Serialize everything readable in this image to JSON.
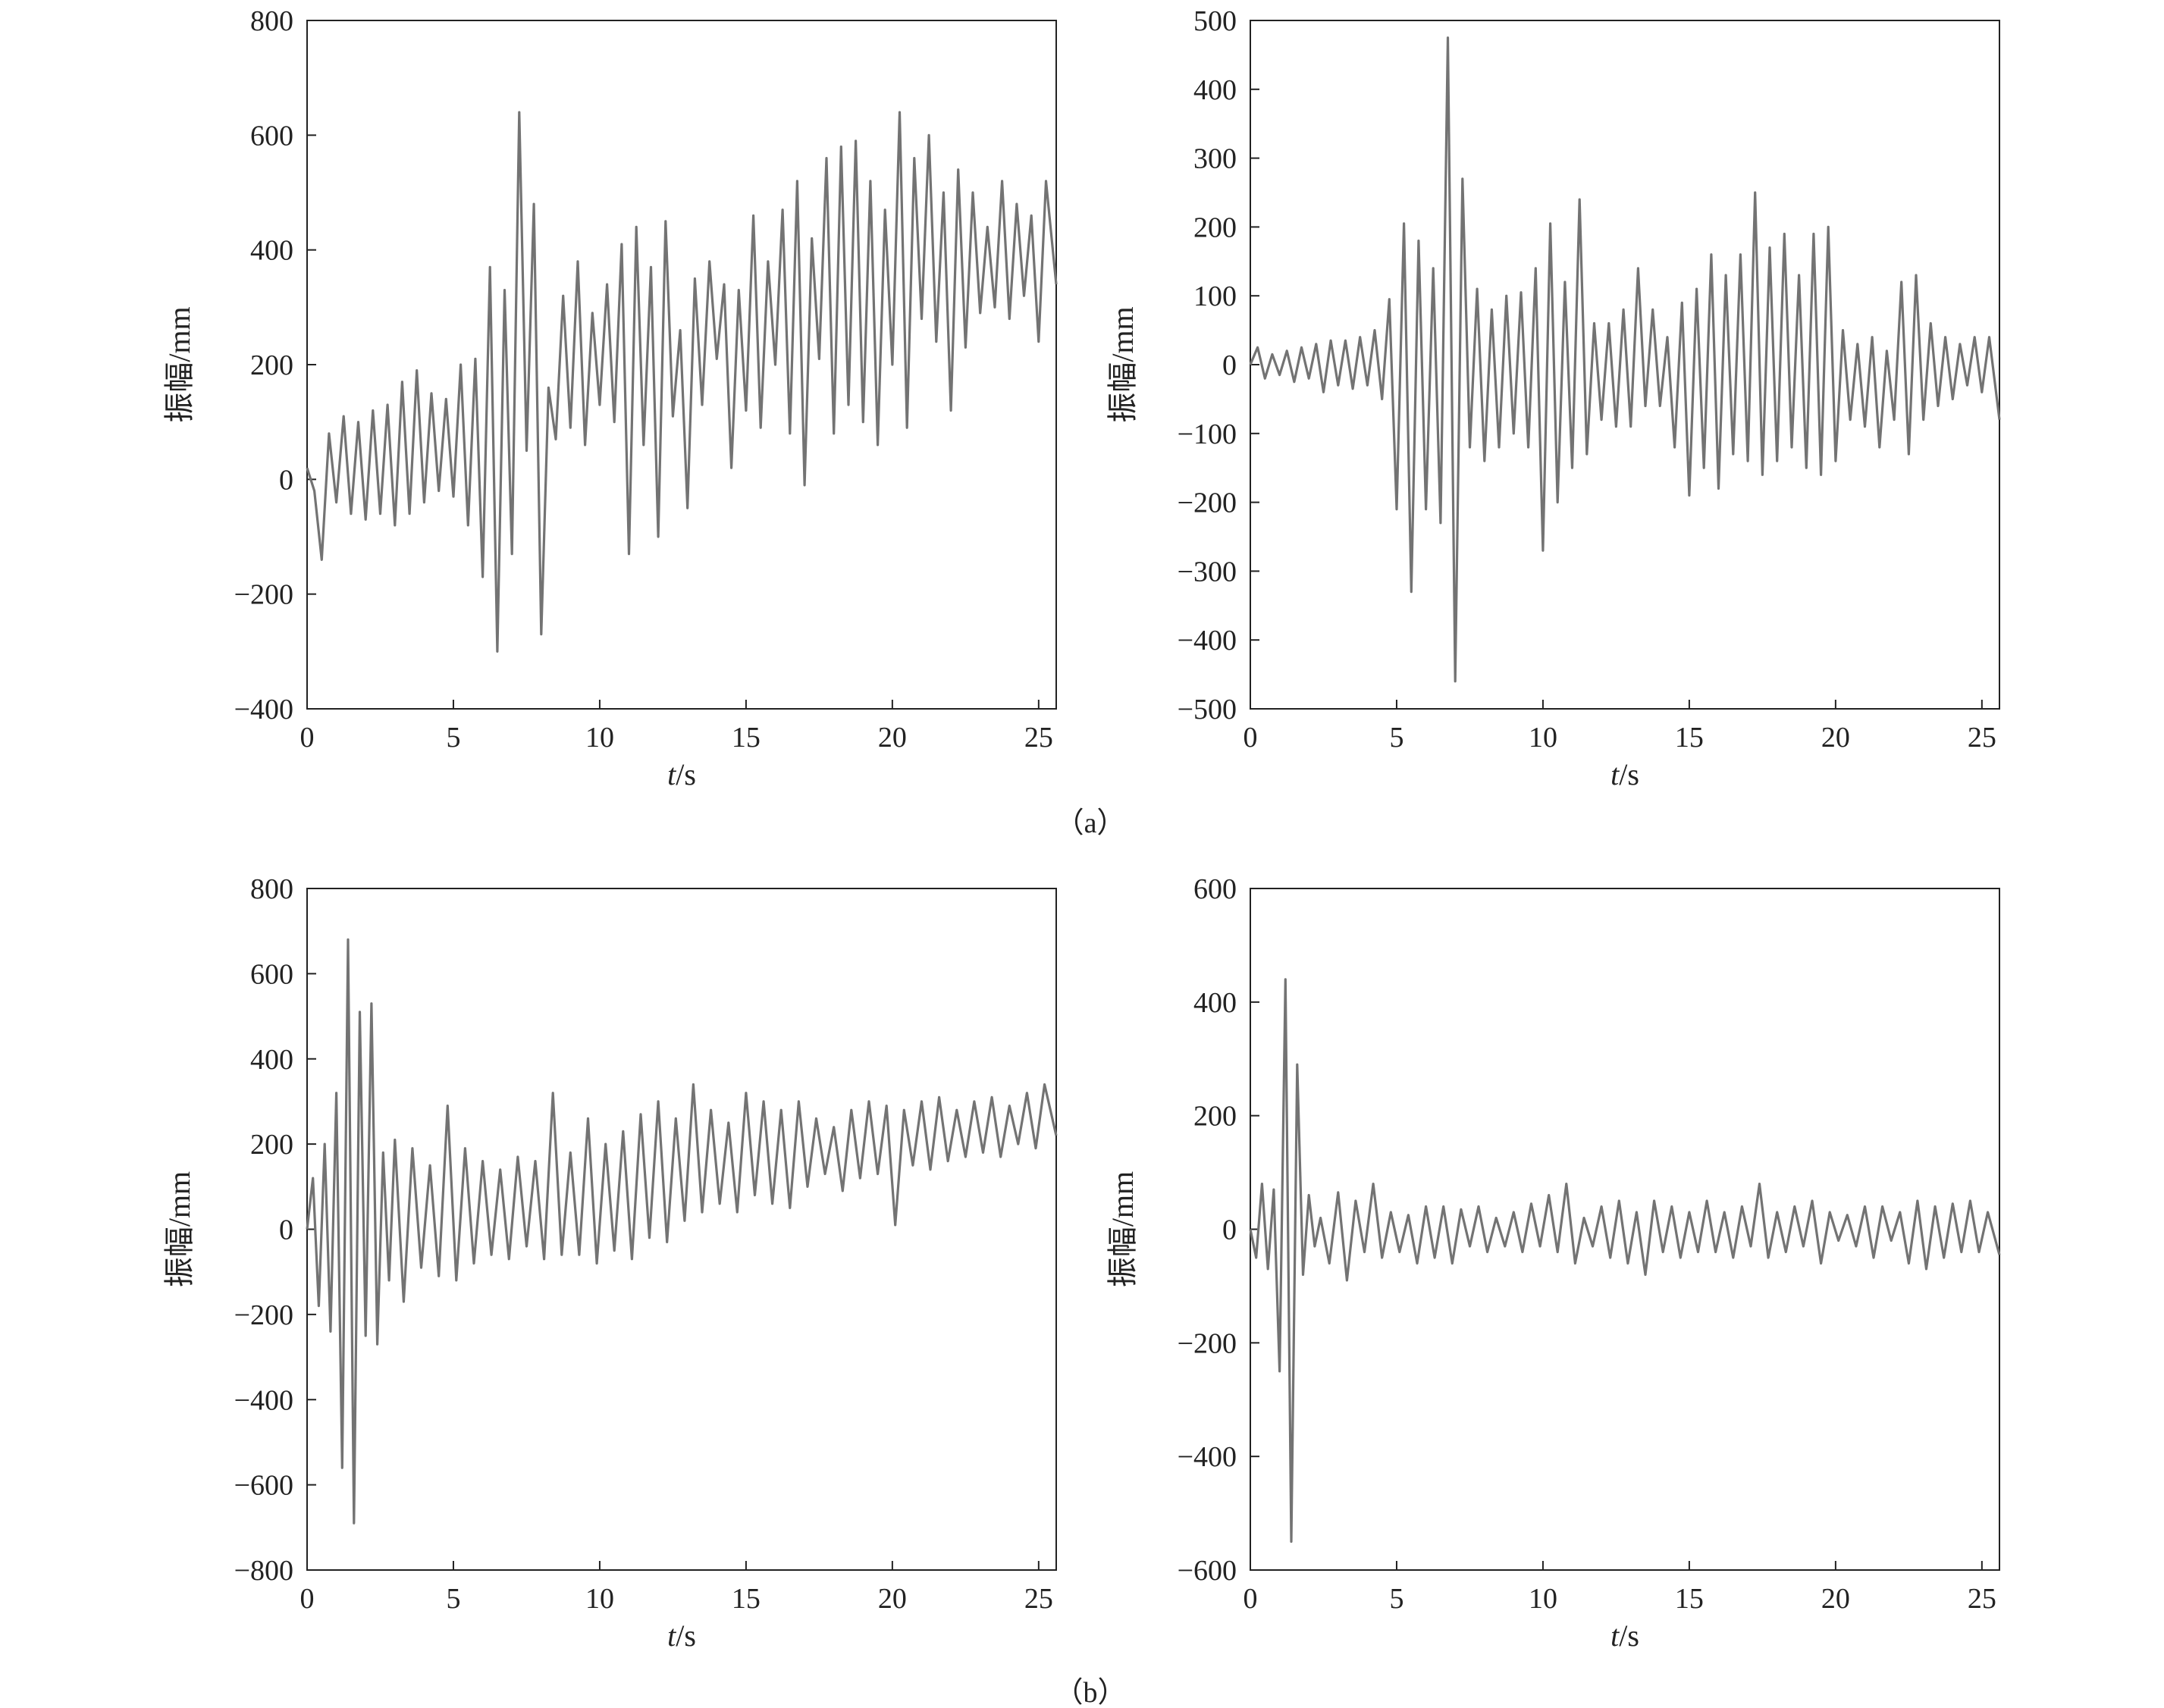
{
  "figure": {
    "panel_labels": [
      "（a）",
      "（b）"
    ],
    "line_color": "#737373"
  },
  "chart_data": [
    {
      "id": "a-left",
      "type": "line",
      "xlabel_italic": "t",
      "xlabel_unit": "/s",
      "ylabel": "振幅/mm",
      "xlim": [
        0,
        25.6
      ],
      "ylim": [
        -400,
        800
      ],
      "xticks": [
        0,
        5,
        10,
        15,
        20,
        25
      ],
      "yticks": [
        -400,
        -200,
        0,
        200,
        400,
        600,
        800
      ],
      "ytick_labels": [
        "−400",
        "−200",
        "0",
        "200",
        "400",
        "600",
        "800"
      ],
      "grid": false,
      "legend": "none",
      "x": [
        0,
        0.25,
        0.5,
        0.75,
        1.0,
        1.25,
        1.5,
        1.75,
        2.0,
        2.25,
        2.5,
        2.75,
        3.0,
        3.25,
        3.5,
        3.75,
        4.0,
        4.25,
        4.5,
        4.75,
        5.0,
        5.25,
        5.5,
        5.75,
        6.0,
        6.25,
        6.5,
        6.75,
        7.0,
        7.25,
        7.5,
        7.75,
        8.0,
        8.25,
        8.5,
        8.75,
        9.0,
        9.25,
        9.5,
        9.75,
        10.0,
        10.25,
        10.5,
        10.75,
        11.0,
        11.25,
        11.5,
        11.75,
        12.0,
        12.25,
        12.5,
        12.75,
        13.0,
        13.25,
        13.5,
        13.75,
        14.0,
        14.25,
        14.5,
        14.75,
        15.0,
        15.25,
        15.5,
        15.75,
        16.0,
        16.25,
        16.5,
        16.75,
        17.0,
        17.25,
        17.5,
        17.75,
        18.0,
        18.25,
        18.5,
        18.75,
        19.0,
        19.25,
        19.5,
        19.75,
        20.0,
        20.25,
        20.5,
        20.75,
        21.0,
        21.25,
        21.5,
        21.75,
        22.0,
        22.25,
        22.5,
        22.75,
        23.0,
        23.25,
        23.5,
        23.75,
        24.0,
        24.25,
        24.5,
        24.75,
        25.0,
        25.25,
        25.6
      ],
      "y": [
        20,
        -20,
        -140,
        80,
        -40,
        110,
        -60,
        100,
        -70,
        120,
        -60,
        130,
        -80,
        170,
        -60,
        190,
        -40,
        150,
        -20,
        140,
        -30,
        200,
        -80,
        210,
        -170,
        370,
        -300,
        330,
        -130,
        640,
        50,
        480,
        -270,
        160,
        70,
        320,
        90,
        380,
        60,
        290,
        130,
        340,
        100,
        410,
        -130,
        440,
        60,
        370,
        -100,
        450,
        110,
        260,
        -50,
        350,
        130,
        380,
        210,
        340,
        20,
        330,
        120,
        460,
        90,
        380,
        200,
        470,
        80,
        520,
        -10,
        420,
        210,
        560,
        80,
        580,
        130,
        590,
        100,
        520,
        60,
        470,
        200,
        640,
        90,
        560,
        280,
        600,
        240,
        500,
        120,
        540,
        230,
        500,
        290,
        440,
        300,
        520,
        280,
        480,
        320,
        460,
        240,
        520,
        340
      ]
    },
    {
      "id": "a-right",
      "type": "line",
      "xlabel_italic": "t",
      "xlabel_unit": "/s",
      "ylabel": "振幅/mm",
      "xlim": [
        0,
        25.6
      ],
      "ylim": [
        -500,
        500
      ],
      "xticks": [
        0,
        5,
        10,
        15,
        20,
        25
      ],
      "yticks": [
        -500,
        -400,
        -300,
        -200,
        -100,
        0,
        100,
        200,
        300,
        400,
        500
      ],
      "ytick_labels": [
        "−500",
        "−400",
        "−300",
        "−200",
        "−100",
        "0",
        "100",
        "200",
        "300",
        "400",
        "500"
      ],
      "grid": false,
      "legend": "none",
      "x": [
        0,
        0.25,
        0.5,
        0.75,
        1.0,
        1.25,
        1.5,
        1.75,
        2.0,
        2.25,
        2.5,
        2.75,
        3.0,
        3.25,
        3.5,
        3.75,
        4.0,
        4.25,
        4.5,
        4.75,
        5.0,
        5.25,
        5.5,
        5.75,
        6.0,
        6.25,
        6.5,
        6.75,
        7.0,
        7.25,
        7.5,
        7.75,
        8.0,
        8.25,
        8.5,
        8.75,
        9.0,
        9.25,
        9.5,
        9.75,
        10.0,
        10.25,
        10.5,
        10.75,
        11.0,
        11.25,
        11.5,
        11.75,
        12.0,
        12.25,
        12.5,
        12.75,
        13.0,
        13.25,
        13.5,
        13.75,
        14.0,
        14.25,
        14.5,
        14.75,
        15.0,
        15.25,
        15.5,
        15.75,
        16.0,
        16.25,
        16.5,
        16.75,
        17.0,
        17.25,
        17.5,
        17.75,
        18.0,
        18.25,
        18.5,
        18.75,
        19.0,
        19.25,
        19.5,
        19.75,
        20.0,
        20.25,
        20.5,
        20.75,
        21.0,
        21.25,
        21.5,
        21.75,
        22.0,
        22.25,
        22.5,
        22.75,
        23.0,
        23.25,
        23.5,
        23.75,
        24.0,
        24.25,
        24.5,
        24.75,
        25.0,
        25.25,
        25.6
      ],
      "y": [
        0,
        25,
        -20,
        15,
        -15,
        20,
        -25,
        25,
        -20,
        30,
        -40,
        35,
        -30,
        35,
        -35,
        40,
        -30,
        50,
        -50,
        95,
        -210,
        205,
        -330,
        180,
        -210,
        140,
        -230,
        475,
        -460,
        270,
        -120,
        110,
        -140,
        80,
        -120,
        100,
        -100,
        105,
        -120,
        140,
        -270,
        205,
        -200,
        120,
        -150,
        240,
        -130,
        60,
        -80,
        60,
        -90,
        80,
        -90,
        140,
        -60,
        80,
        -60,
        40,
        -120,
        90,
        -190,
        110,
        -150,
        160,
        -180,
        130,
        -130,
        160,
        -140,
        250,
        -160,
        170,
        -140,
        190,
        -120,
        130,
        -150,
        190,
        -160,
        200,
        -140,
        50,
        -80,
        30,
        -90,
        40,
        -120,
        20,
        -80,
        120,
        -130,
        130,
        -80,
        60,
        -60,
        40,
        -50,
        30,
        -30,
        40,
        -40,
        40,
        -80
      ]
    },
    {
      "id": "b-left",
      "type": "line",
      "xlabel_italic": "t",
      "xlabel_unit": "/s",
      "ylabel": "振幅/mm",
      "xlim": [
        0,
        25.6
      ],
      "ylim": [
        -800,
        800
      ],
      "xticks": [
        0,
        5,
        10,
        15,
        20,
        25
      ],
      "yticks": [
        -800,
        -600,
        -400,
        -200,
        0,
        200,
        400,
        600,
        800
      ],
      "ytick_labels": [
        "−800",
        "−600",
        "−400",
        "−200",
        "0",
        "200",
        "400",
        "600",
        "800"
      ],
      "grid": false,
      "legend": "none",
      "x": [
        0,
        0.2,
        0.4,
        0.6,
        0.8,
        1.0,
        1.2,
        1.4,
        1.6,
        1.8,
        2.0,
        2.2,
        2.4,
        2.6,
        2.8,
        3.0,
        3.3,
        3.6,
        3.9,
        4.2,
        4.5,
        4.8,
        5.1,
        5.4,
        5.7,
        6.0,
        6.3,
        6.6,
        6.9,
        7.2,
        7.5,
        7.8,
        8.1,
        8.4,
        8.7,
        9.0,
        9.3,
        9.6,
        9.9,
        10.2,
        10.5,
        10.8,
        11.1,
        11.4,
        11.7,
        12.0,
        12.3,
        12.6,
        12.9,
        13.2,
        13.5,
        13.8,
        14.1,
        14.4,
        14.7,
        15.0,
        15.3,
        15.6,
        15.9,
        16.2,
        16.5,
        16.8,
        17.1,
        17.4,
        17.7,
        18.0,
        18.3,
        18.6,
        18.9,
        19.2,
        19.5,
        19.8,
        20.1,
        20.4,
        20.7,
        21.0,
        21.3,
        21.6,
        21.9,
        22.2,
        22.5,
        22.8,
        23.1,
        23.4,
        23.7,
        24.0,
        24.3,
        24.6,
        24.9,
        25.2,
        25.6
      ],
      "y": [
        0,
        120,
        -180,
        200,
        -240,
        320,
        -560,
        680,
        -690,
        510,
        -250,
        530,
        -270,
        180,
        -120,
        210,
        -170,
        190,
        -90,
        150,
        -110,
        290,
        -120,
        190,
        -80,
        160,
        -60,
        140,
        -70,
        170,
        -40,
        160,
        -70,
        320,
        -60,
        180,
        -60,
        260,
        -80,
        200,
        -50,
        230,
        -70,
        270,
        -20,
        300,
        -30,
        260,
        20,
        340,
        40,
        280,
        60,
        250,
        40,
        320,
        80,
        300,
        60,
        280,
        50,
        300,
        100,
        260,
        130,
        240,
        90,
        280,
        120,
        300,
        130,
        290,
        10,
        280,
        150,
        300,
        140,
        310,
        160,
        280,
        170,
        300,
        180,
        310,
        170,
        290,
        200,
        320,
        190,
        340,
        220
      ]
    },
    {
      "id": "b-right",
      "type": "line",
      "xlabel_italic": "t",
      "xlabel_unit": "/s",
      "ylabel": "振幅/mm",
      "xlim": [
        0,
        25.6
      ],
      "ylim": [
        -600,
        600
      ],
      "xticks": [
        0,
        5,
        10,
        15,
        20,
        25
      ],
      "yticks": [
        -600,
        -400,
        -200,
        0,
        200,
        400,
        600
      ],
      "ytick_labels": [
        "−600",
        "−400",
        "−200",
        "0",
        "200",
        "400",
        "600"
      ],
      "grid": false,
      "legend": "none",
      "x": [
        0,
        0.2,
        0.4,
        0.6,
        0.8,
        1.0,
        1.2,
        1.4,
        1.6,
        1.8,
        2.0,
        2.2,
        2.4,
        2.7,
        3.0,
        3.3,
        3.6,
        3.9,
        4.2,
        4.5,
        4.8,
        5.1,
        5.4,
        5.7,
        6.0,
        6.3,
        6.6,
        6.9,
        7.2,
        7.5,
        7.8,
        8.1,
        8.4,
        8.7,
        9.0,
        9.3,
        9.6,
        9.9,
        10.2,
        10.5,
        10.8,
        11.1,
        11.4,
        11.7,
        12.0,
        12.3,
        12.6,
        12.9,
        13.2,
        13.5,
        13.8,
        14.1,
        14.4,
        14.7,
        15.0,
        15.3,
        15.6,
        15.9,
        16.2,
        16.5,
        16.8,
        17.1,
        17.4,
        17.7,
        18.0,
        18.3,
        18.6,
        18.9,
        19.2,
        19.5,
        19.8,
        20.1,
        20.4,
        20.7,
        21.0,
        21.3,
        21.6,
        21.9,
        22.2,
        22.5,
        22.8,
        23.1,
        23.4,
        23.7,
        24.0,
        24.3,
        24.6,
        24.9,
        25.2,
        25.6
      ],
      "y": [
        0,
        -50,
        80,
        -70,
        70,
        -250,
        440,
        -550,
        290,
        -80,
        60,
        -30,
        20,
        -60,
        65,
        -90,
        50,
        -40,
        80,
        -50,
        30,
        -40,
        25,
        -60,
        40,
        -50,
        40,
        -60,
        35,
        -30,
        40,
        -40,
        20,
        -30,
        30,
        -40,
        45,
        -30,
        60,
        -40,
        80,
        -60,
        20,
        -30,
        40,
        -50,
        50,
        -60,
        30,
        -80,
        50,
        -40,
        40,
        -50,
        30,
        -40,
        50,
        -40,
        30,
        -50,
        40,
        -30,
        80,
        -50,
        30,
        -40,
        40,
        -30,
        50,
        -60,
        30,
        -20,
        25,
        -30,
        40,
        -50,
        40,
        -20,
        30,
        -60,
        50,
        -70,
        40,
        -50,
        45,
        -40,
        50,
        -40,
        30,
        -45
      ]
    }
  ]
}
